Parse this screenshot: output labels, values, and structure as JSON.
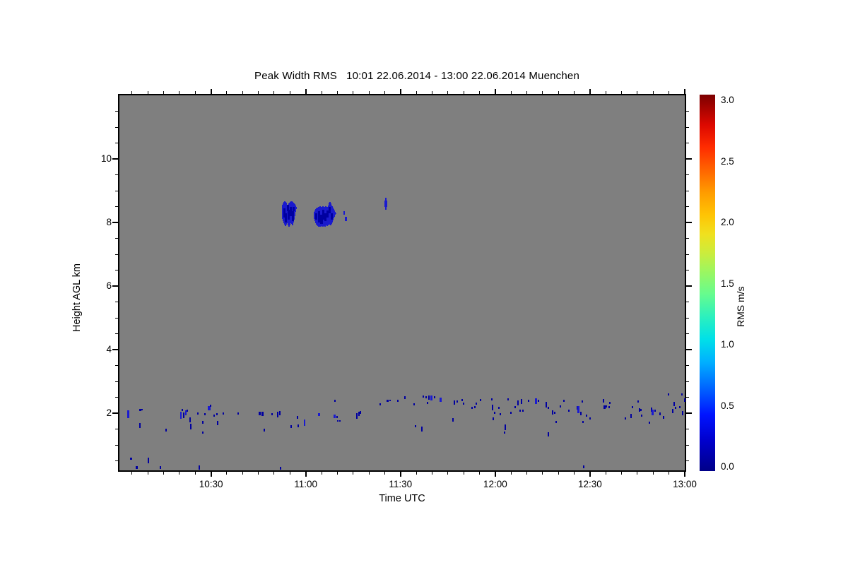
{
  "chart_data": {
    "type": "heatmap",
    "title": "Peak Width RMS   10:01 22.06.2014 - 13:00 22.06.2014 Muenchen",
    "product": "Peak Width RMS",
    "time_range": [
      "10:01",
      "13:00"
    ],
    "date": "22.06.2014",
    "station": "Muenchen",
    "xlabel": "Time UTC",
    "ylabel": "Height AGL km",
    "x_axis": {
      "range_min_after_10utc": [
        1,
        180
      ],
      "major_ticks": [
        {
          "t": 30,
          "label": "10:30"
        },
        {
          "t": 60,
          "label": "11:00"
        },
        {
          "t": 90,
          "label": "11:30"
        },
        {
          "t": 120,
          "label": "12:00"
        },
        {
          "t": 150,
          "label": "12:30"
        },
        {
          "t": 180,
          "label": "13:00"
        }
      ],
      "minor_step_min": 5
    },
    "y_axis": {
      "range_km": [
        0.2,
        12
      ],
      "major_ticks": [
        {
          "h": 2,
          "label": "2"
        },
        {
          "h": 4,
          "label": "4"
        },
        {
          "h": 6,
          "label": "6"
        },
        {
          "h": 8,
          "label": "8"
        },
        {
          "h": 10,
          "label": "10"
        }
      ],
      "minor_step_km": 0.5
    },
    "background_color": "#7f7f7f",
    "colorbar": {
      "label": "RMS m/s",
      "min": 0.0,
      "max": 3.0,
      "tick_labels": [
        "0.0",
        "0.5",
        "1.0",
        "1.5",
        "2.0",
        "2.5",
        "3.0"
      ],
      "colormap": "jet",
      "stops": [
        {
          "pos": 0.0,
          "color": "#000088"
        },
        {
          "pos": 0.08,
          "color": "#0000cc"
        },
        {
          "pos": 0.15,
          "color": "#0014ff"
        },
        {
          "pos": 0.22,
          "color": "#0064ff"
        },
        {
          "pos": 0.29,
          "color": "#00b0ff"
        },
        {
          "pos": 0.35,
          "color": "#00e0e8"
        },
        {
          "pos": 0.41,
          "color": "#2cf0be"
        },
        {
          "pos": 0.47,
          "color": "#66fc8e"
        },
        {
          "pos": 0.53,
          "color": "#9cf660"
        },
        {
          "pos": 0.58,
          "color": "#ccec3c"
        },
        {
          "pos": 0.63,
          "color": "#f0e01e"
        },
        {
          "pos": 0.68,
          "color": "#ffc404"
        },
        {
          "pos": 0.74,
          "color": "#ff9c00"
        },
        {
          "pos": 0.8,
          "color": "#ff6400"
        },
        {
          "pos": 0.86,
          "color": "#ff2c00"
        },
        {
          "pos": 0.92,
          "color": "#dc0800"
        },
        {
          "pos": 1.0,
          "color": "#7c0000"
        }
      ]
    },
    "speck_colors": [
      "#0000a0",
      "#1b1bd0"
    ],
    "cloud_color": "#1a1acd",
    "cloud_dark_color": "#0000a0",
    "points_format": "[time_min_after_10:00_UTC, height_km, mark_len_px, mark_w_px, color_idx]",
    "points": [
      [
        3.7,
        1.96,
        11,
        3,
        1
      ],
      [
        7.5,
        2.11,
        3,
        3,
        0
      ],
      [
        8.2,
        2.11,
        2,
        2,
        0
      ],
      [
        7.5,
        1.62,
        7,
        2,
        0
      ],
      [
        4.6,
        0.56,
        3,
        3,
        0
      ],
      [
        10.2,
        0.51,
        8,
        2,
        0
      ],
      [
        6.4,
        0.29,
        4,
        3,
        0
      ],
      [
        15.8,
        1.47,
        4,
        2,
        0
      ],
      [
        14.0,
        0.29,
        4,
        2,
        0
      ],
      [
        20.5,
        1.93,
        10,
        2,
        1
      ],
      [
        20.9,
        2.09,
        3,
        2,
        0
      ],
      [
        21.4,
        1.93,
        8,
        2,
        0
      ],
      [
        22.0,
        2.02,
        7,
        2,
        1
      ],
      [
        22.5,
        2.07,
        3,
        2,
        0
      ],
      [
        23.4,
        1.8,
        7,
        2,
        0
      ],
      [
        23.6,
        1.58,
        8,
        2,
        0
      ],
      [
        25.8,
        2.0,
        3,
        2,
        0
      ],
      [
        27.4,
        1.71,
        4,
        2,
        0
      ],
      [
        27.4,
        1.38,
        3,
        2,
        0
      ],
      [
        28.1,
        1.96,
        3,
        2,
        0
      ],
      [
        29.4,
        2.16,
        6,
        4,
        1
      ],
      [
        29.9,
        2.24,
        3,
        2,
        0
      ],
      [
        31.0,
        1.93,
        3,
        2,
        0
      ],
      [
        31.9,
        1.96,
        3,
        2,
        0
      ],
      [
        32.1,
        1.69,
        6,
        2,
        0
      ],
      [
        33.9,
        1.98,
        3,
        2,
        0
      ],
      [
        38.6,
        2.0,
        3,
        2,
        0
      ],
      [
        45.5,
        1.98,
        5,
        3,
        0
      ],
      [
        26.3,
        0.29,
        6,
        2,
        0
      ],
      [
        52.0,
        0.27,
        4,
        2,
        0
      ],
      [
        46.2,
        1.98,
        6,
        3,
        0
      ],
      [
        46.9,
        1.47,
        4,
        2,
        0
      ],
      [
        49.3,
        1.96,
        3,
        2,
        0
      ],
      [
        51.1,
        1.96,
        8,
        2,
        0
      ],
      [
        51.8,
        2.0,
        6,
        2,
        0
      ],
      [
        55.4,
        1.58,
        4,
        2,
        0
      ],
      [
        57.4,
        1.87,
        4,
        2,
        0
      ],
      [
        57.6,
        1.6,
        4,
        2,
        0
      ],
      [
        59.6,
        1.71,
        9,
        2,
        1
      ],
      [
        64.1,
        1.96,
        4,
        3,
        1
      ],
      [
        69.2,
        2.4,
        3,
        2,
        0
      ],
      [
        69.2,
        1.91,
        5,
        3,
        1
      ],
      [
        69.9,
        1.87,
        3,
        2,
        0
      ],
      [
        70.1,
        1.76,
        2,
        2,
        0
      ],
      [
        70.8,
        1.76,
        2,
        2,
        0
      ],
      [
        76.2,
        1.91,
        8,
        2,
        0
      ],
      [
        76.9,
        1.98,
        6,
        2,
        0
      ],
      [
        77.3,
        2.02,
        4,
        2,
        0
      ],
      [
        83.6,
        2.27,
        3,
        2,
        0
      ],
      [
        86.0,
        2.4,
        3,
        3,
        0
      ],
      [
        86.7,
        2.4,
        2,
        2,
        0
      ],
      [
        89.2,
        2.38,
        3,
        2,
        0
      ],
      [
        91.4,
        2.49,
        4,
        2,
        0
      ],
      [
        94.3,
        2.27,
        3,
        2,
        0
      ],
      [
        97.2,
        2.53,
        3,
        2,
        0
      ],
      [
        98.1,
        2.49,
        3,
        2,
        0
      ],
      [
        98.6,
        2.33,
        3,
        2,
        0
      ],
      [
        99.0,
        2.49,
        6,
        2,
        0
      ],
      [
        99.7,
        2.47,
        7,
        3,
        1
      ],
      [
        100.8,
        2.51,
        3,
        2,
        0
      ],
      [
        102.6,
        2.42,
        6,
        3,
        1
      ],
      [
        107.1,
        2.33,
        6,
        2,
        0
      ],
      [
        108.0,
        2.36,
        3,
        2,
        0
      ],
      [
        109.5,
        2.42,
        3,
        2,
        0
      ],
      [
        110.0,
        2.29,
        3,
        2,
        0
      ],
      [
        112.7,
        2.16,
        3,
        2,
        0
      ],
      [
        113.6,
        2.2,
        3,
        2,
        0
      ],
      [
        114.0,
        2.29,
        3,
        2,
        0
      ],
      [
        115.4,
        2.42,
        3,
        2,
        0
      ],
      [
        118.9,
        2.44,
        3,
        2,
        0
      ],
      [
        119.1,
        2.18,
        8,
        2,
        0
      ],
      [
        119.8,
        2.02,
        3,
        2,
        0
      ],
      [
        119.4,
        1.82,
        4,
        2,
        0
      ],
      [
        121.2,
        2.16,
        3,
        2,
        0
      ],
      [
        121.6,
        1.96,
        3,
        2,
        0
      ],
      [
        124.1,
        2.44,
        3,
        2,
        0
      ],
      [
        125.0,
        2.02,
        3,
        2,
        0
      ],
      [
        126.3,
        2.18,
        3,
        2,
        0
      ],
      [
        127.2,
        2.33,
        7,
        2,
        0
      ],
      [
        127.9,
        2.07,
        3,
        2,
        0
      ],
      [
        128.3,
        2.36,
        7,
        2,
        0
      ],
      [
        128.8,
        2.07,
        3,
        2,
        0
      ],
      [
        130.6,
        2.4,
        3,
        2,
        0
      ],
      [
        132.8,
        2.38,
        8,
        3,
        1
      ],
      [
        133.7,
        2.4,
        3,
        2,
        0
      ],
      [
        94.7,
        1.6,
        3,
        2,
        0
      ],
      [
        96.8,
        1.51,
        7,
        2,
        0
      ],
      [
        106.6,
        1.78,
        5,
        2,
        0
      ],
      [
        123.2,
        1.56,
        8,
        2,
        0
      ],
      [
        123.0,
        1.4,
        3,
        2,
        0
      ],
      [
        136.1,
        2.27,
        8,
        2,
        0
      ],
      [
        136.8,
        2.16,
        3,
        2,
        0
      ],
      [
        138.2,
        2.02,
        6,
        2,
        0
      ],
      [
        138.8,
        2.02,
        3,
        2,
        0
      ],
      [
        139.3,
        1.73,
        3,
        2,
        0
      ],
      [
        140.6,
        2.22,
        3,
        2,
        0
      ],
      [
        141.7,
        2.38,
        3,
        2,
        0
      ],
      [
        143.3,
        2.07,
        3,
        2,
        0
      ],
      [
        146.0,
        2.16,
        5,
        2,
        0
      ],
      [
        146.4,
        2.11,
        10,
        3,
        1
      ],
      [
        147.1,
        1.98,
        5,
        2,
        0
      ],
      [
        147.6,
        2.36,
        3,
        2,
        0
      ],
      [
        147.8,
        1.73,
        3,
        2,
        0
      ],
      [
        148.9,
        1.93,
        3,
        2,
        0
      ],
      [
        150.0,
        1.84,
        3,
        2,
        0
      ],
      [
        154.3,
        2.38,
        5,
        2,
        0
      ],
      [
        154.7,
        2.2,
        5,
        3,
        0
      ],
      [
        155.2,
        2.22,
        3,
        2,
        0
      ],
      [
        156.1,
        2.18,
        3,
        2,
        0
      ],
      [
        156.3,
        2.33,
        3,
        2,
        0
      ],
      [
        136.8,
        1.33,
        6,
        2,
        0
      ],
      [
        148.0,
        0.31,
        4,
        2,
        0
      ],
      [
        161.2,
        1.84,
        3,
        2,
        0
      ],
      [
        163.0,
        1.91,
        6,
        2,
        0
      ],
      [
        163.4,
        2.18,
        3,
        2,
        0
      ],
      [
        165.2,
        2.36,
        3,
        2,
        0
      ],
      [
        165.7,
        2.11,
        5,
        2,
        0
      ],
      [
        166.1,
        2.11,
        3,
        2,
        0
      ],
      [
        166.3,
        1.93,
        3,
        2,
        0
      ],
      [
        168.8,
        1.71,
        3,
        2,
        0
      ],
      [
        169.5,
        2.11,
        6,
        2,
        0
      ],
      [
        169.9,
        2.02,
        8,
        3,
        1
      ],
      [
        170.6,
        2.07,
        3,
        2,
        0
      ],
      [
        172.2,
        1.98,
        4,
        2,
        0
      ],
      [
        173.3,
        1.87,
        4,
        2,
        0
      ],
      [
        174.8,
        2.6,
        3,
        2,
        0
      ],
      [
        176.2,
        2.07,
        6,
        2,
        0
      ],
      [
        176.6,
        2.29,
        6,
        2,
        0
      ],
      [
        177.1,
        2.16,
        3,
        2,
        0
      ],
      [
        178.4,
        2.18,
        3,
        2,
        0
      ],
      [
        179.3,
        2.0,
        6,
        2,
        0
      ],
      [
        179.1,
        2.58,
        3,
        2,
        0
      ],
      [
        180.0,
        2.42,
        5,
        2,
        0
      ],
      [
        72.2,
        8.29,
        5,
        2,
        1
      ],
      [
        72.6,
        8.11,
        6,
        3,
        1
      ],
      [
        85.4,
        8.6,
        17,
        2,
        1
      ],
      [
        85.4,
        8.6,
        9,
        4,
        1
      ]
    ],
    "cloud_columns_format": "[time_min_after_10:00_UTC, height_top_km, height_bottom_km]",
    "clouds": [
      {
        "name": "cloud-1",
        "columns": [
          [
            52.7,
            8.56,
            8.11
          ],
          [
            52.92,
            8.6,
            8.04
          ],
          [
            53.15,
            8.64,
            7.98
          ],
          [
            53.37,
            8.67,
            7.93
          ],
          [
            53.6,
            8.64,
            7.89
          ],
          [
            53.82,
            8.62,
            7.93
          ],
          [
            54.04,
            8.56,
            8.02
          ],
          [
            54.27,
            8.51,
            7.98
          ],
          [
            54.49,
            8.56,
            7.91
          ],
          [
            54.72,
            8.6,
            7.87
          ],
          [
            54.94,
            8.62,
            7.91
          ],
          [
            55.16,
            8.64,
            7.98
          ],
          [
            55.39,
            8.67,
            8.04
          ],
          [
            55.61,
            8.67,
            7.96
          ],
          [
            55.84,
            8.64,
            7.91
          ],
          [
            56.06,
            8.62,
            8.0
          ],
          [
            56.28,
            8.6,
            8.09
          ],
          [
            56.51,
            8.58,
            8.2
          ],
          [
            56.73,
            8.53,
            8.33
          ],
          [
            56.96,
            8.49,
            8.42
          ]
        ]
      },
      {
        "name": "cloud-2",
        "columns": [
          [
            62.76,
            8.33,
            8.11
          ],
          [
            62.98,
            8.38,
            8.04
          ],
          [
            63.21,
            8.42,
            7.98
          ],
          [
            63.43,
            8.44,
            7.93
          ],
          [
            63.65,
            8.47,
            7.91
          ],
          [
            63.88,
            8.47,
            7.89
          ],
          [
            64.1,
            8.49,
            7.87
          ],
          [
            64.33,
            8.49,
            7.87
          ],
          [
            64.55,
            8.51,
            7.89
          ],
          [
            64.77,
            8.49,
            7.87
          ],
          [
            65.0,
            8.47,
            7.91
          ],
          [
            65.22,
            8.49,
            7.89
          ],
          [
            65.45,
            8.51,
            7.87
          ],
          [
            65.67,
            8.49,
            7.91
          ],
          [
            65.89,
            8.47,
            7.89
          ],
          [
            66.12,
            8.49,
            7.87
          ],
          [
            66.34,
            8.51,
            7.91
          ],
          [
            66.57,
            8.49,
            7.93
          ],
          [
            66.79,
            8.47,
            7.89
          ],
          [
            67.01,
            8.49,
            7.91
          ],
          [
            67.24,
            8.53,
            7.93
          ],
          [
            67.46,
            8.62,
            7.96
          ],
          [
            67.68,
            8.64,
            7.93
          ],
          [
            67.91,
            8.6,
            7.91
          ],
          [
            68.13,
            8.53,
            7.96
          ],
          [
            68.36,
            8.51,
            8.0
          ],
          [
            68.58,
            8.47,
            8.07
          ],
          [
            68.8,
            8.42,
            8.13
          ],
          [
            69.03,
            8.38,
            8.18
          ],
          [
            69.25,
            8.33,
            8.24
          ],
          [
            69.47,
            8.29,
            8.27
          ]
        ]
      }
    ],
    "cloud_dark_patches": [
      [
        53.3,
        8.45,
        8.15
      ],
      [
        53.7,
        8.3,
        8.0
      ],
      [
        54.3,
        8.55,
        8.35
      ],
      [
        54.5,
        8.4,
        8.1
      ],
      [
        55.3,
        8.5,
        8.2
      ],
      [
        55.9,
        8.35,
        8.05
      ],
      [
        56.2,
        8.5,
        8.35
      ],
      [
        63.4,
        8.3,
        8.1
      ],
      [
        64.1,
        8.35,
        8.0
      ],
      [
        64.8,
        8.25,
        7.95
      ],
      [
        65.5,
        8.4,
        8.1
      ],
      [
        66.2,
        8.3,
        8.05
      ],
      [
        66.9,
        8.38,
        8.15
      ],
      [
        67.6,
        8.5,
        8.28
      ],
      [
        68.3,
        8.3,
        8.1
      ],
      [
        65.0,
        8.15,
        7.95
      ]
    ]
  }
}
